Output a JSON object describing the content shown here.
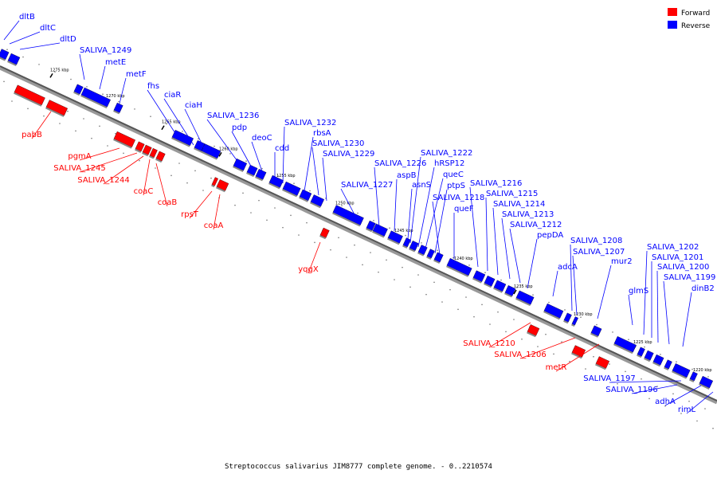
{
  "colors": {
    "forward": "#ff0000",
    "reverse": "#0000ff",
    "line": "#000000",
    "backbone": "#666666"
  },
  "legend": {
    "forward": "Forward",
    "reverse": "Reverse"
  },
  "caption": "Streptococcus salivarius JIM8777 complete genome. - 0..2210574",
  "ticks": [
    "1275 kbp",
    "1270 kbp",
    "1265 kbp",
    "1260 kbp",
    "1255 kbp",
    "1250 kbp",
    "1245 kbp",
    "1240 kbp",
    "1235 kbp",
    "1230 kbp",
    "1225 kbp",
    "1220 kbp"
  ],
  "reverse_labels": [
    "dltB",
    "dltC",
    "dltD",
    "SALIVA_1249",
    "metE",
    "metF",
    "fhs",
    "ciaR",
    "ciaH",
    "SALIVA_1236",
    "pdp",
    "deoC",
    "cdd",
    "SALIVA_1232",
    "rbsA",
    "SALIVA_1230",
    "SALIVA_1229",
    "SALIVA_1227",
    "SALIVA_1226",
    "aspB",
    "asnS",
    "SALIVA_1222",
    "hRSP12",
    "queC",
    "ptpS",
    "SALIVA_1218",
    "queF",
    "SALIVA_1216",
    "SALIVA_1215",
    "SALIVA_1214",
    "SALIVA_1213",
    "SALIVA_1212",
    "pepDA",
    "adcA",
    "SALIVA_1208",
    "SALIVA_1207",
    "mur2",
    "glmS",
    "SALIVA_1202",
    "SALIVA_1201",
    "SALIVA_1200",
    "SALIVA_1199",
    "dinB2",
    "SALIVA_1197",
    "SALIVA_1196",
    "adhA",
    "rimL"
  ],
  "forward_labels": [
    "pabB",
    "pgmA",
    "SALIVA_1245",
    "SALIVA_1244",
    "coaC",
    "coaB",
    "rpsT",
    "coaA",
    "yqgX",
    "SALIVA_1210",
    "SALIVA_1206",
    "metR"
  ]
}
